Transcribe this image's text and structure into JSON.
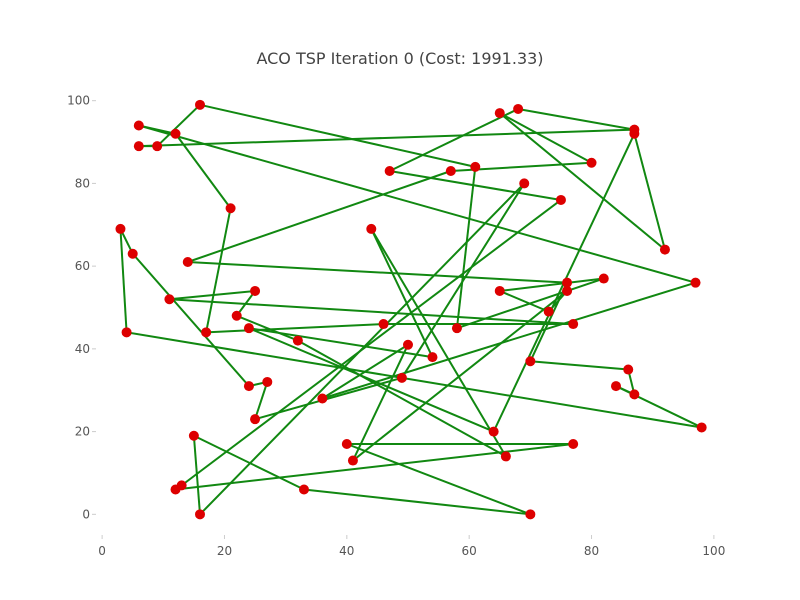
{
  "chart_data": {
    "type": "scatter",
    "title": "ACO TSP Iteration 0 (Cost: 1991.33)",
    "xlabel": "",
    "ylabel": "",
    "xlim": [
      -1,
      101
    ],
    "ylim": [
      -5,
      105
    ],
    "xticks": [
      0,
      20,
      40,
      60,
      80,
      100
    ],
    "yticks": [
      0,
      20,
      40,
      60,
      80,
      100
    ],
    "grid": false,
    "colors": {
      "point": "#dd0000",
      "route": "#118811",
      "text": "#444444"
    },
    "points": [
      [
        6,
        94
      ],
      [
        21,
        74
      ],
      [
        17,
        44
      ],
      [
        32,
        42
      ],
      [
        44,
        69
      ],
      [
        66,
        14
      ],
      [
        77,
        17
      ],
      [
        40,
        17
      ],
      [
        64,
        20
      ],
      [
        46,
        46
      ],
      [
        54,
        38
      ],
      [
        25,
        54
      ],
      [
        11,
        52
      ],
      [
        77,
        46
      ],
      [
        6,
        89
      ],
      [
        9,
        89
      ],
      [
        12,
        92
      ],
      [
        92,
        64
      ],
      [
        70,
        37
      ],
      [
        84,
        31
      ],
      [
        86,
        35
      ],
      [
        87,
        29
      ],
      [
        98,
        21
      ],
      [
        50,
        41
      ],
      [
        73,
        49
      ],
      [
        76,
        54
      ],
      [
        13,
        7
      ],
      [
        16,
        0
      ],
      [
        24,
        31
      ],
      [
        27,
        32
      ],
      [
        14,
        61
      ],
      [
        82,
        57
      ],
      [
        87,
        93
      ],
      [
        87,
        92
      ],
      [
        65,
        97
      ],
      [
        68,
        98
      ],
      [
        80,
        85
      ],
      [
        57,
        83
      ],
      [
        47,
        83
      ],
      [
        16,
        99
      ],
      [
        61,
        84
      ],
      [
        69,
        80
      ],
      [
        75,
        76
      ],
      [
        76,
        56
      ],
      [
        65,
        54
      ],
      [
        49,
        33
      ],
      [
        36,
        28
      ],
      [
        25,
        23
      ],
      [
        41,
        13
      ],
      [
        33,
        6
      ],
      [
        15,
        19
      ],
      [
        70,
        0
      ],
      [
        12,
        6
      ],
      [
        4,
        44
      ],
      [
        3,
        69
      ],
      [
        5,
        63
      ],
      [
        22,
        48
      ],
      [
        24,
        45
      ],
      [
        58,
        45
      ],
      [
        97,
        56
      ]
    ],
    "route": [
      0,
      16,
      1,
      2,
      9,
      13,
      12,
      11,
      56,
      3,
      5,
      4,
      10,
      57,
      8,
      33,
      17,
      34,
      36,
      37,
      30,
      43,
      18,
      20,
      21,
      19,
      22,
      53,
      54,
      55,
      28,
      29,
      47,
      45,
      41,
      27,
      50,
      49,
      51,
      7,
      6,
      52,
      26,
      42,
      38,
      35,
      32,
      14,
      15,
      39,
      40,
      58,
      31,
      44,
      24,
      25,
      48,
      23,
      46,
      59
    ]
  }
}
